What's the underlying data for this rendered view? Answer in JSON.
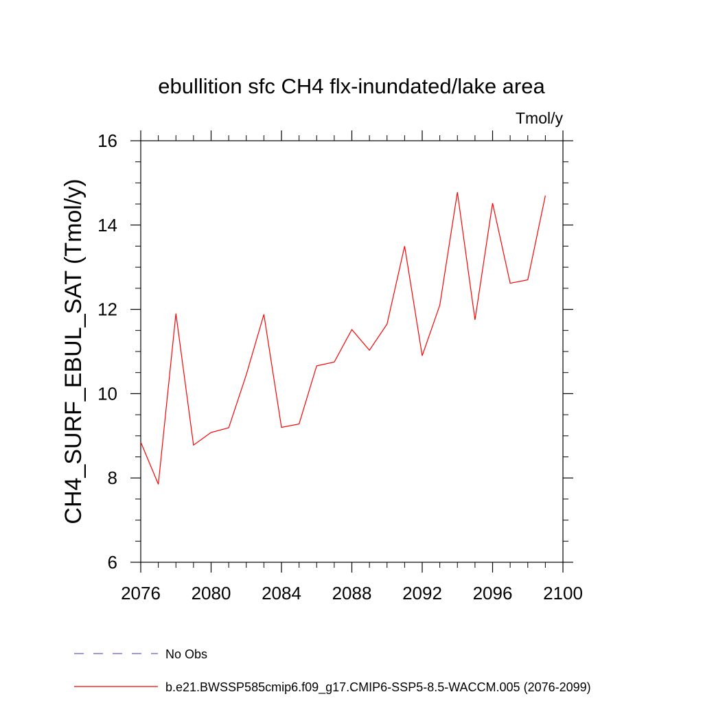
{
  "chart_data": {
    "type": "line",
    "title": "ebullition sfc CH4 flx-inundated/lake area",
    "units_label": "Tmol/y",
    "ylabel": "CH4_SURF_EBUL_SAT  (Tmol/y)",
    "xlabel": "",
    "xlim": [
      2076,
      2100
    ],
    "ylim": [
      6,
      16
    ],
    "x_ticks": [
      2076,
      2080,
      2084,
      2088,
      2092,
      2096,
      2100
    ],
    "y_ticks": [
      6,
      8,
      10,
      12,
      14,
      16
    ],
    "x_tick_labels": [
      "2076",
      "2080",
      "2084",
      "2088",
      "2092",
      "2096",
      "2100"
    ],
    "y_tick_labels": [
      "6",
      "8",
      "10",
      "12",
      "14",
      "16"
    ],
    "x_minor_step": 1,
    "y_minor_step": 0.5,
    "grid": false,
    "legend_position": "bottom",
    "series": [
      {
        "name": "b.e21.BWSSP585cmip6.f09_g17.CMIP6-SSP5-8.5-WACCM.005 (2076-2099)",
        "color": "#ff0000",
        "dash": "solid",
        "x": [
          2076,
          2077,
          2078,
          2079,
          2080,
          2081,
          2082,
          2083,
          2084,
          2085,
          2086,
          2087,
          2088,
          2089,
          2090,
          2091,
          2092,
          2093,
          2094,
          2095,
          2096,
          2097,
          2098,
          2099
        ],
        "y": [
          8.85,
          7.85,
          11.9,
          8.78,
          9.08,
          9.19,
          10.45,
          11.88,
          9.2,
          9.28,
          10.66,
          10.75,
          11.52,
          11.03,
          11.65,
          13.5,
          10.9,
          12.1,
          14.78,
          11.75,
          14.52,
          12.62,
          12.7,
          14.7
        ]
      }
    ],
    "legend": [
      {
        "label": "No Obs",
        "color": "#6a5acd",
        "dash": "dashed"
      },
      {
        "label": "b.e21.BWSSP585cmip6.f09_g17.CMIP6-SSP5-8.5-WACCM.005 (2076-2099)",
        "color": "#ff0000",
        "dash": "solid"
      }
    ]
  }
}
